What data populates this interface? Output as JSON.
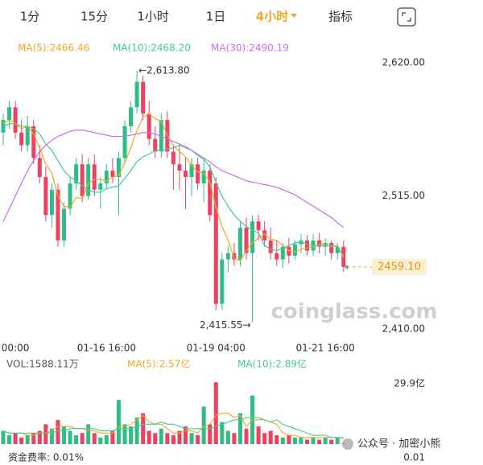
{
  "toolbar": {
    "tabs": [
      {
        "label": "1分"
      },
      {
        "label": "15分"
      },
      {
        "label": "1小时"
      },
      {
        "label": "1日"
      },
      {
        "label": "4小时",
        "active": true
      },
      {
        "label": "指标"
      }
    ]
  },
  "chart_data": [
    {
      "type": "candlestick",
      "up_color": "#2ebd85",
      "down_color": "#f0405f",
      "categories": [
        null,
        null,
        "00:00",
        null,
        null,
        null,
        null,
        null,
        null,
        null,
        null,
        null,
        null,
        null,
        null,
        null,
        null,
        "01-16 16:00",
        null,
        null,
        null,
        null,
        null,
        null,
        null,
        null,
        null,
        null,
        null,
        null,
        null,
        null,
        null,
        null,
        null,
        "01-19 04:00",
        null,
        null,
        null,
        null,
        null,
        null,
        null,
        null,
        null,
        null,
        null,
        null,
        null,
        null,
        null,
        null,
        null,
        "01-21 16:00",
        null,
        null,
        null
      ],
      "open": [
        2565,
        2575,
        2585,
        2565,
        2555,
        2570,
        2545,
        2530,
        2500,
        2520,
        2480,
        2505,
        2525,
        2540,
        2515,
        2540,
        2520,
        2525,
        2535,
        2530,
        2545,
        2570,
        2585,
        2605,
        2580,
        2560,
        2550,
        2575,
        2550,
        2540,
        2535,
        2530,
        2540,
        2525,
        2535,
        2525,
        2430,
        2465,
        2470,
        2465,
        2490,
        2470,
        2495,
        2488,
        2480,
        2470,
        2465,
        2475,
        2468,
        2477,
        2480,
        2472,
        2480,
        2475,
        2478,
        2470,
        2475
      ],
      "high": [
        2580,
        2590,
        2590,
        2575,
        2578,
        2575,
        2555,
        2538,
        2525,
        2525,
        2510,
        2530,
        2545,
        2548,
        2545,
        2548,
        2530,
        2540,
        2545,
        2550,
        2575,
        2590,
        2613.8,
        2610,
        2590,
        2570,
        2580,
        2582,
        2555,
        2555,
        2545,
        2545,
        2545,
        2545,
        2540,
        2530,
        2470,
        2475,
        2478,
        2495,
        2498,
        2500,
        2500,
        2495,
        2490,
        2480,
        2478,
        2482,
        2480,
        2485,
        2484,
        2485,
        2486,
        2482,
        2480,
        2478,
        2480
      ],
      "low": [
        2555,
        2568,
        2560,
        2550,
        2550,
        2540,
        2525,
        2495,
        2490,
        2475,
        2475,
        2500,
        2520,
        2510,
        2512,
        2515,
        2505,
        2520,
        2525,
        2500,
        2540,
        2565,
        2580,
        2575,
        2555,
        2545,
        2545,
        2545,
        2520,
        2520,
        2505,
        2515,
        2520,
        2510,
        2495,
        2425,
        2425,
        2455,
        2460,
        2460,
        2465,
        2415.55,
        2480,
        2475,
        2465,
        2460,
        2458,
        2462,
        2465,
        2470,
        2468,
        2468,
        2470,
        2468,
        2465,
        2465,
        2455
      ],
      "close": [
        2575,
        2585,
        2565,
        2555,
        2570,
        2545,
        2530,
        2500,
        2520,
        2480,
        2505,
        2525,
        2540,
        2515,
        2540,
        2520,
        2525,
        2535,
        2530,
        2545,
        2570,
        2585,
        2605,
        2580,
        2560,
        2550,
        2575,
        2550,
        2540,
        2535,
        2530,
        2540,
        2525,
        2535,
        2500,
        2430,
        2465,
        2470,
        2465,
        2490,
        2470,
        2495,
        2488,
        2480,
        2470,
        2465,
        2475,
        2468,
        2477,
        2480,
        2472,
        2480,
        2475,
        2478,
        2470,
        2475,
        2459.1
      ],
      "series": [
        {
          "name": "MA(5):2466.46",
          "color": "#f5a623",
          "values": [
            2572,
            2575,
            2572,
            2568,
            2570,
            2564,
            2553,
            2540,
            2533,
            2515,
            2507,
            2506,
            2514,
            2513,
            2525,
            2528,
            2528,
            2527,
            2530,
            2531,
            2541,
            2553,
            2567,
            2577,
            2580,
            2576,
            2574,
            2563,
            2555,
            2550,
            2546,
            2539,
            2534,
            2533,
            2526,
            2506,
            2491,
            2480,
            2466,
            2464,
            2472,
            2478,
            2482,
            2485,
            2481,
            2480,
            2476,
            2472,
            2471,
            2473,
            2474,
            2475,
            2477,
            2477,
            2475,
            2476,
            2466.46
          ]
        },
        {
          "name": "MA(10):2468.20",
          "color": "#3ecc9a",
          "values": [
            2570,
            2572,
            2572,
            2570,
            2570,
            2568,
            2564,
            2556,
            2551,
            2543,
            2535,
            2530,
            2527,
            2523,
            2520,
            2518,
            2518,
            2521,
            2522,
            2523,
            2529,
            2535,
            2542,
            2546,
            2548,
            2551,
            2551,
            2552,
            2553,
            2555,
            2553,
            2551,
            2547,
            2544,
            2538,
            2526,
            2515,
            2507,
            2500,
            2495,
            2491,
            2488,
            2486,
            2476,
            2473,
            2472,
            2474,
            2476,
            2478,
            2479,
            2477,
            2476,
            2476,
            2476,
            2476,
            2475,
            2468.2
          ]
        },
        {
          "name": "MA(30):2490.19",
          "color": "#c56fe8",
          "values": [
            2495,
            2505,
            2515,
            2525,
            2535,
            2543,
            2550,
            2555,
            2559,
            2562,
            2564,
            2566,
            2567,
            2567,
            2566,
            2565,
            2564,
            2563,
            2562,
            2562,
            2562,
            2563,
            2564,
            2565,
            2565,
            2564,
            2562,
            2560,
            2558,
            2556,
            2554,
            2551,
            2548,
            2545,
            2542,
            2538,
            2535,
            2533,
            2531,
            2529,
            2527,
            2526,
            2525,
            2524,
            2523,
            2522,
            2520,
            2518,
            2516,
            2513,
            2510,
            2507,
            2504,
            2501,
            2498,
            2494,
            2490.19
          ]
        }
      ],
      "ylim": [
        2400,
        2641
      ],
      "yticks": [
        {
          "value": 2620,
          "label": "2,620.00"
        },
        {
          "value": 2515,
          "label": "2,515.00"
        },
        {
          "value": 2410,
          "label": "2,410.00"
        }
      ],
      "high_label": "←2,613.80",
      "low_label": "2,415.55→",
      "last_price_label": "2459.10",
      "watermark": "coinglass.com"
    },
    {
      "type": "bar",
      "title": "VOL:1588.11万",
      "values": [
        6,
        4,
        5,
        3,
        4,
        5,
        6,
        9,
        7,
        11,
        8,
        6,
        4,
        5,
        9,
        5,
        3,
        4,
        6,
        20,
        9,
        8,
        12,
        14,
        6,
        5,
        7,
        5,
        4,
        6,
        8,
        5,
        4,
        17,
        9,
        28,
        10,
        6,
        5,
        14,
        7,
        22,
        8,
        5,
        6,
        4,
        3,
        4,
        3,
        3,
        2,
        3,
        2,
        3,
        2,
        3,
        0.16
      ],
      "series": [
        {
          "name": "MA(5):2.57亿",
          "color": "#f5a623",
          "values": [
            6,
            5,
            5,
            5,
            4,
            4,
            5,
            5,
            6,
            8,
            8,
            8,
            7,
            7,
            6,
            6,
            5,
            5,
            5,
            8,
            8,
            9,
            11,
            13,
            10,
            9,
            9,
            7,
            5,
            5,
            6,
            6,
            5,
            8,
            9,
            13,
            14,
            14,
            12,
            13,
            8,
            11,
            11,
            11,
            10,
            9,
            5,
            4,
            4,
            3,
            3,
            3,
            3,
            3,
            3,
            3,
            2.57
          ]
        },
        {
          "name": "MA(10):2.89亿",
          "color": "#3ecc9a",
          "values": [
            6,
            5,
            5,
            5,
            5,
            5,
            5,
            5,
            5,
            6,
            6,
            7,
            7,
            7,
            7,
            7,
            6,
            6,
            6,
            7,
            7,
            7,
            8,
            9,
            9,
            9,
            10,
            9,
            9,
            8,
            7,
            7,
            7,
            7,
            7,
            8,
            9,
            10,
            11,
            11,
            12,
            12,
            12,
            11,
            10,
            11,
            9,
            8,
            7,
            6,
            5,
            4,
            4,
            4,
            3,
            3,
            2.89
          ]
        }
      ],
      "ylim": [
        0,
        29.9
      ],
      "yticks": [
        {
          "value": 29.9,
          "label": "29.9亿"
        }
      ]
    }
  ],
  "funding": {
    "label": "资金费率: 0.01%",
    "axis_label": "0.01"
  },
  "footer_watermark": "公众号 · 加密小熊"
}
